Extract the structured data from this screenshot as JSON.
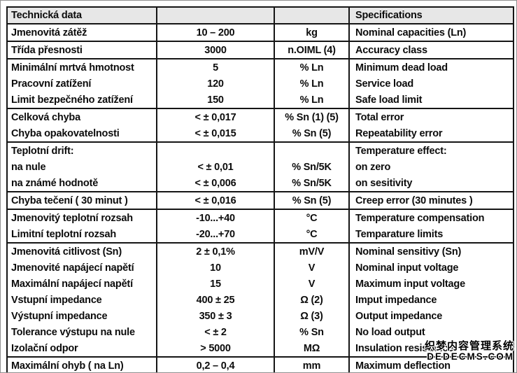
{
  "header": {
    "col1": "Technická data",
    "col4": "Specifications"
  },
  "groups": [
    [
      {
        "cz": "Jmenovitá zátěž",
        "value": "10 – 200",
        "unit": "kg",
        "en": "Nominal capacities (Ln)"
      }
    ],
    [
      {
        "cz": "Třída přesnosti",
        "value": "3000",
        "unit": "n.OIML (4)",
        "en": "Accuracy class"
      }
    ],
    [
      {
        "cz": "Minimální mrtvá hmotnost",
        "value": "5",
        "unit": "% Ln",
        "en": "Minimum dead load"
      },
      {
        "cz": "Pracovní zatížení",
        "value": "120",
        "unit": "% Ln",
        "en": "Service load"
      },
      {
        "cz": "Limit bezpečného zatížení",
        "value": "150",
        "unit": "% Ln",
        "en": "Safe load limit"
      }
    ],
    [
      {
        "cz": "Celková chyba",
        "value": "< ± 0,017",
        "unit": "% Sn (1) (5)",
        "en": "Total error"
      },
      {
        "cz": "Chyba opakovatelnosti",
        "value": "< ± 0,015",
        "unit": "% Sn (5)",
        "en": "Repeatability error"
      }
    ],
    [
      {
        "cz": "Teplotní drift:",
        "value": "",
        "unit": "",
        "en": "Temperature effect:"
      },
      {
        "cz": "na nule",
        "value": "< ± 0,01",
        "unit": "% Sn/5K",
        "en": "on zero"
      },
      {
        "cz": "na známé hodnotě",
        "value": "< ± 0,006",
        "unit": "% Sn/5K",
        "en": "on sesitivity"
      }
    ],
    [
      {
        "cz": "Chyba tečení ( 30 minut )",
        "value": "< ± 0,016",
        "unit": "% Sn (5)",
        "en": "Creep error (30 minutes )"
      }
    ],
    [
      {
        "cz": "Jmenovitý teplotní rozsah",
        "value": "-10...+40",
        "unit": "°C",
        "en": "Temperature compensation"
      },
      {
        "cz": "Limitní teplotní rozsah",
        "value": "-20...+70",
        "unit": "°C",
        "en": "Temparature limits"
      }
    ],
    [
      {
        "cz": "Jmenovitá citlivost (Sn)",
        "value": "2 ± 0,1%",
        "unit": "mV/V",
        "en": "Nominal sensitivy (Sn)"
      },
      {
        "cz": "Jmenovité napájecí napětí",
        "value": "10",
        "unit": "V",
        "en": "Nominal input voltage"
      },
      {
        "cz": "Maximální napájecí napětí",
        "value": "15",
        "unit": "V",
        "en": "Maximum input voltage"
      },
      {
        "cz": "Vstupní impedance",
        "value": "400 ± 25",
        "unit": "Ω (2)",
        "en": "Imput impedance"
      },
      {
        "cz": "Výstupní impedance",
        "value": "350 ± 3",
        "unit": "Ω (3)",
        "en": "Output impedance"
      },
      {
        "cz": "Tolerance výstupu na nule",
        "value": "< ± 2",
        "unit": "% Sn",
        "en": "No load output"
      },
      {
        "cz": "Izolační odpor",
        "value": "> 5000",
        "unit": "MΩ",
        "en": "Insulation resistance"
      }
    ],
    [
      {
        "cz": "Maximální ohyb ( na Ln)",
        "value": "0,2 – 0,4",
        "unit": "mm",
        "en": "Maximum deflection"
      }
    ]
  ],
  "watermark": {
    "line1": "织梦内容管理系统",
    "line2": "DEDECMS.COM"
  },
  "colors": {
    "header_bg": "#e7e7e7",
    "border": "#151515",
    "text": "#0c0c0c"
  }
}
